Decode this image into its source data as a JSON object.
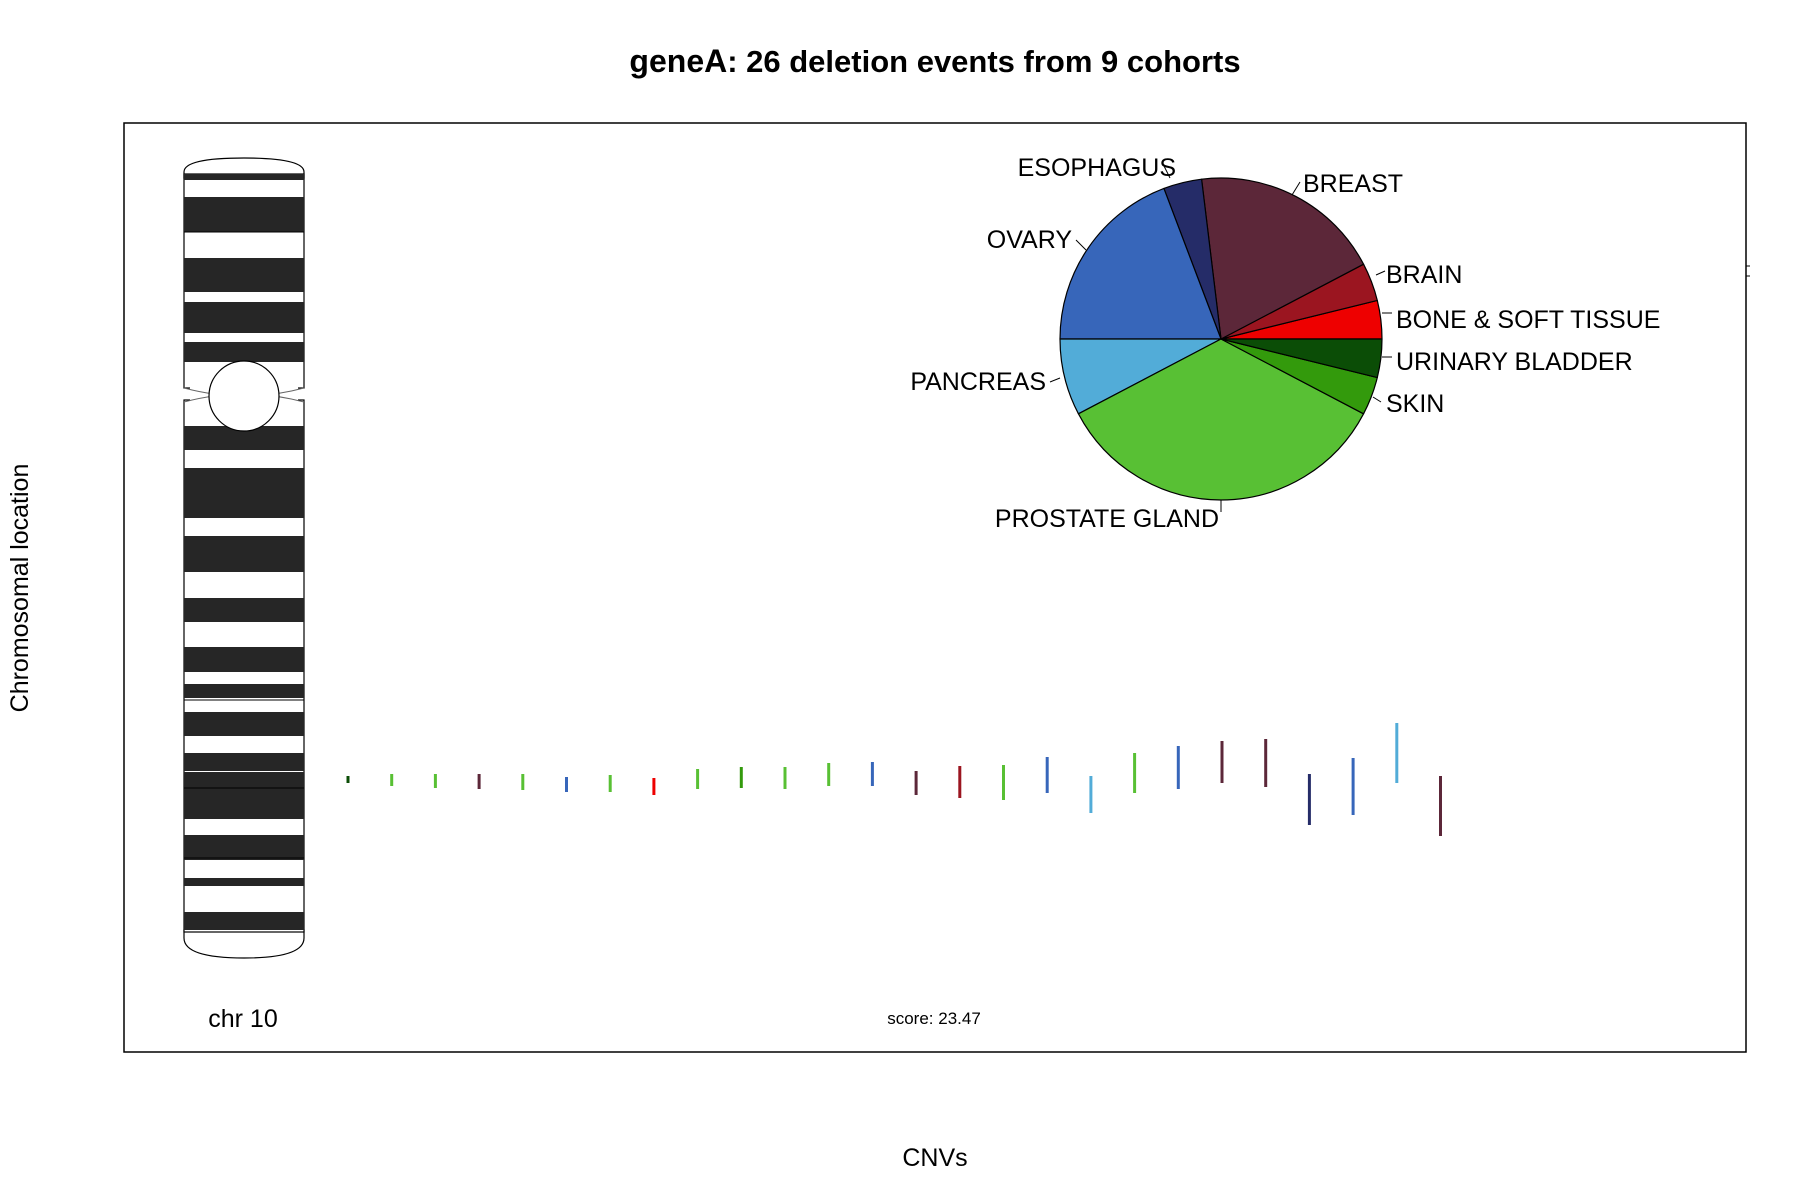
{
  "chart_data": {
    "type": "pie",
    "title": {
      "gene": "geneA",
      "rest": ": 26 deletion events from 9 cohorts"
    },
    "xlabel": "CNVs",
    "ylabel": "Chromosomal location",
    "chromosome_label": "chr 10",
    "score_label": "score:  23.47",
    "pie_slices": [
      {
        "label": "BONE & SOFT TISSUE",
        "count": 1,
        "color": "#EE0000"
      },
      {
        "label": "BRAIN",
        "count": 1,
        "color": "#9B1520"
      },
      {
        "label": "BREAST",
        "count": 5,
        "color": "#5C2739"
      },
      {
        "label": "ESOPHAGUS",
        "count": 1,
        "color": "#252C68"
      },
      {
        "label": "OVARY",
        "count": 5,
        "color": "#3766BA"
      },
      {
        "label": "PANCREAS",
        "count": 2,
        "color": "#52ACD8"
      },
      {
        "label": "PROSTATE GLAND",
        "count": 9,
        "color": "#58C034"
      },
      {
        "label": "SKIN",
        "count": 1,
        "color": "#339A0C"
      },
      {
        "label": "URINARY BLADDER",
        "count": 1,
        "color": "#0B4D06"
      }
    ],
    "cnv_events": [
      {
        "index": 1,
        "cohort": "URINARY BLADDER",
        "color": "#0B4D06"
      },
      {
        "index": 2,
        "cohort": "PROSTATE GLAND",
        "color": "#58C034"
      },
      {
        "index": 3,
        "cohort": "PROSTATE GLAND",
        "color": "#58C034"
      },
      {
        "index": 4,
        "cohort": "BREAST",
        "color": "#5C2739"
      },
      {
        "index": 5,
        "cohort": "PROSTATE GLAND",
        "color": "#58C034"
      },
      {
        "index": 6,
        "cohort": "OVARY",
        "color": "#3766BA"
      },
      {
        "index": 7,
        "cohort": "PROSTATE GLAND",
        "color": "#58C034"
      },
      {
        "index": 8,
        "cohort": "BONE & SOFT TISSUE",
        "color": "#EE0000"
      },
      {
        "index": 9,
        "cohort": "PROSTATE GLAND",
        "color": "#58C034"
      },
      {
        "index": 10,
        "cohort": "SKIN",
        "color": "#339A0C"
      },
      {
        "index": 11,
        "cohort": "PROSTATE GLAND",
        "color": "#58C034"
      },
      {
        "index": 12,
        "cohort": "PROSTATE GLAND",
        "color": "#58C034"
      },
      {
        "index": 13,
        "cohort": "OVARY",
        "color": "#3766BA"
      },
      {
        "index": 14,
        "cohort": "BREAST",
        "color": "#5C2739"
      },
      {
        "index": 15,
        "cohort": "BRAIN",
        "color": "#9B1520"
      },
      {
        "index": 16,
        "cohort": "PROSTATE GLAND",
        "color": "#58C034"
      },
      {
        "index": 17,
        "cohort": "OVARY",
        "color": "#3766BA"
      },
      {
        "index": 18,
        "cohort": "PANCREAS",
        "color": "#52ACD8"
      },
      {
        "index": 19,
        "cohort": "PROSTATE GLAND",
        "color": "#58C034"
      },
      {
        "index": 20,
        "cohort": "OVARY",
        "color": "#3766BA"
      },
      {
        "index": 21,
        "cohort": "BREAST",
        "color": "#5C2739"
      },
      {
        "index": 22,
        "cohort": "BREAST",
        "color": "#5C2739"
      },
      {
        "index": 23,
        "cohort": "ESOPHAGUS",
        "color": "#252C68"
      },
      {
        "index": 24,
        "cohort": "OVARY",
        "color": "#3766BA"
      },
      {
        "index": 25,
        "cohort": "PANCREAS",
        "color": "#52ACD8"
      },
      {
        "index": 26,
        "cohort": "BREAST",
        "color": "#5C2739"
      }
    ],
    "legend": "none",
    "grid": false
  }
}
